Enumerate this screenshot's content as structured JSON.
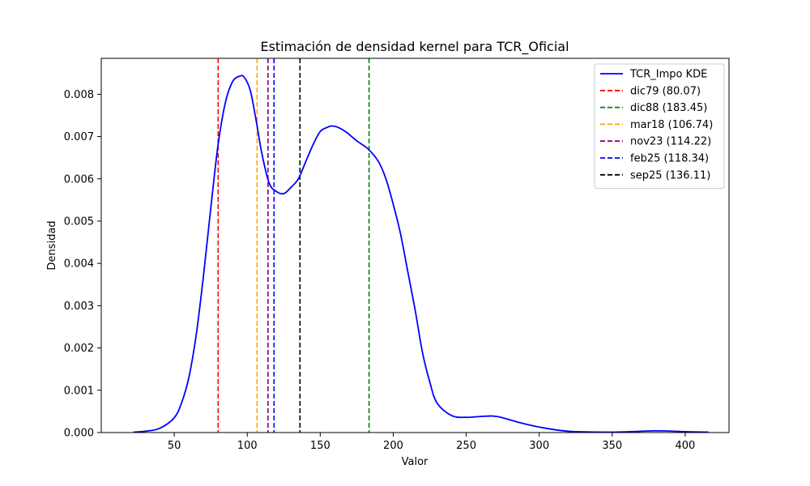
{
  "chart_data": {
    "type": "line",
    "title": "Estimación de densidad kernel para TCR_Oficial",
    "xlabel": "Valor",
    "ylabel": "Densidad",
    "xlim": [
      0,
      430
    ],
    "ylim": [
      0,
      0.00885
    ],
    "xticks": [
      50,
      100,
      150,
      200,
      250,
      300,
      350,
      400
    ],
    "xtick_labels": [
      "50",
      "100",
      "150",
      "200",
      "250",
      "300",
      "350",
      "400"
    ],
    "yticks": [
      0,
      0.001,
      0.002,
      0.003,
      0.004,
      0.005,
      0.006,
      0.007,
      0.008
    ],
    "ytick_labels": [
      "0.000",
      "0.001",
      "0.002",
      "0.003",
      "0.004",
      "0.005",
      "0.006",
      "0.007",
      "0.008"
    ],
    "grid": false,
    "legend_position": "top-right",
    "series": [
      {
        "name": "TCR_Impo KDE",
        "color": "#0000ff",
        "x": [
          22,
          30,
          40,
          50,
          55,
          60,
          65,
          70,
          75,
          80,
          85,
          90,
          95,
          98,
          102,
          106,
          110,
          115,
          120,
          125,
          130,
          135,
          140,
          145,
          150,
          155,
          158,
          162,
          168,
          175,
          183,
          190,
          195,
          200,
          205,
          210,
          215,
          220,
          225,
          230,
          240,
          250,
          260,
          268,
          275,
          285,
          300,
          320,
          350,
          380,
          400,
          416
        ],
        "y": [
          1e-05,
          3e-05,
          0.0001,
          0.00035,
          0.0007,
          0.0013,
          0.0023,
          0.0037,
          0.0053,
          0.0068,
          0.0078,
          0.0083,
          0.00843,
          0.0084,
          0.0081,
          0.0074,
          0.0066,
          0.0059,
          0.0057,
          0.00565,
          0.0058,
          0.006,
          0.0064,
          0.0068,
          0.00712,
          0.00722,
          0.00725,
          0.00722,
          0.0071,
          0.0069,
          0.0067,
          0.0064,
          0.006,
          0.0054,
          0.0047,
          0.0038,
          0.0029,
          0.0019,
          0.0012,
          0.0007,
          0.0004,
          0.00036,
          0.00038,
          0.00039,
          0.00035,
          0.00025,
          0.00013,
          3e-05,
          1e-05,
          4e-05,
          2e-05,
          1e-05
        ]
      }
    ],
    "vlines": [
      {
        "label": "dic79 (80.07)",
        "x": 80.07,
        "color": "#ff0000"
      },
      {
        "label": "dic88 (183.45)",
        "x": 183.45,
        "color": "#008000"
      },
      {
        "label": "mar18 (106.74)",
        "x": 106.74,
        "color": "#ffa500"
      },
      {
        "label": "nov23 (114.22)",
        "x": 114.22,
        "color": "#800080"
      },
      {
        "label": "feb25 (118.34)",
        "x": 118.34,
        "color": "#0000ff"
      },
      {
        "label": "sep25 (136.11)",
        "x": 136.11,
        "color": "#000000"
      }
    ]
  }
}
